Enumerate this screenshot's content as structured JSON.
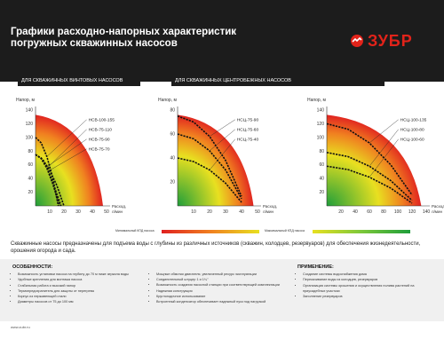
{
  "title": {
    "line1": "Графики расходно-напорных характеристик",
    "line2": "погружных скважинных насосов"
  },
  "brand": {
    "name": "ЗУБР",
    "color": "#e2231a"
  },
  "sections": {
    "screw": "ДЛЯ СКВАЖИННЫХ ВИНТОВЫХ НАСОСОВ",
    "centrifugal": "ДЛЯ СКВАЖИННЫХ ЦЕНТРОБЕЖНЫХ НАСОСОВ"
  },
  "chart_data": [
    {
      "type": "line",
      "ylabel": "Напор, м",
      "xlabel": "Расход, л/мин",
      "ylim": [
        0,
        140
      ],
      "xlim": [
        0,
        50
      ],
      "yticks": [
        "140",
        "120",
        "100",
        "80",
        "60",
        "40",
        "20"
      ],
      "xticks": [
        "10",
        "20",
        "30",
        "40",
        "50"
      ],
      "series": [
        {
          "name": "НСВ-100-155",
          "x": [
            0,
            4,
            8,
            12,
            16
          ],
          "y": [
            100,
            92,
            72,
            42,
            0
          ]
        },
        {
          "name": "НСВ-75-110",
          "x": [
            0,
            4,
            8,
            12,
            17
          ],
          "y": [
            75,
            69,
            55,
            33,
            0
          ]
        },
        {
          "name": "НСВ-75-90",
          "x": [
            0,
            4,
            8,
            12,
            18
          ],
          "y": [
            75,
            70,
            57,
            35,
            0
          ]
        },
        {
          "name": "НСВ-75-70",
          "x": [
            0,
            5,
            10,
            15,
            20
          ],
          "y": [
            75,
            68,
            52,
            30,
            0
          ]
        }
      ]
    },
    {
      "type": "line",
      "ylabel": "Напор, м",
      "xlabel": "Расход, л/мин",
      "ylim": [
        0,
        80
      ],
      "xlim": [
        0,
        50
      ],
      "yticks": [
        "80",
        "60",
        "40",
        "20"
      ],
      "xticks": [
        "10",
        "20",
        "30",
        "40",
        "50"
      ],
      "series": [
        {
          "name": "НСЦ-75-90",
          "x": [
            0,
            10,
            20,
            30,
            40
          ],
          "y": [
            75,
            70,
            58,
            38,
            8
          ]
        },
        {
          "name": "НСЦ-75-60",
          "x": [
            0,
            10,
            20,
            30,
            40
          ],
          "y": [
            60,
            56,
            46,
            30,
            6
          ]
        },
        {
          "name": "НСЦ-75-40",
          "x": [
            0,
            10,
            20,
            30,
            40
          ],
          "y": [
            40,
            37,
            30,
            19,
            3
          ]
        }
      ]
    },
    {
      "type": "line",
      "ylabel": "Напор, м",
      "xlabel": "Расход, л/мин",
      "ylim": [
        0,
        140
      ],
      "xlim": [
        0,
        140
      ],
      "yticks": [
        "140",
        "120",
        "100",
        "80",
        "60",
        "40",
        "20"
      ],
      "xticks": [
        "20",
        "40",
        "60",
        "80",
        "100",
        "120",
        "140"
      ],
      "series": [
        {
          "name": "НСЦ-100-135",
          "x": [
            0,
            30,
            60,
            90,
            120
          ],
          "y": [
            120,
            112,
            92,
            60,
            16
          ]
        },
        {
          "name": "НСЦ-100-80",
          "x": [
            0,
            30,
            60,
            90,
            120
          ],
          "y": [
            78,
            72,
            58,
            37,
            8
          ]
        },
        {
          "name": "НСЦ-100-60",
          "x": [
            0,
            30,
            60,
            90,
            120
          ],
          "y": [
            58,
            53,
            42,
            26,
            4
          ]
        }
      ]
    }
  ],
  "legend": {
    "min_label": "Минимальный КПД насоса",
    "max_label": "Максимальный КПД насоса"
  },
  "description": "Скважинные насосы предназначены для подъема воды с глубины из различных источников (скважин, колодцев, резервуаров) для обеспечения жизнедеятельности, орошения огорода и сада.",
  "features": {
    "title": "ОСОБЕННОСТИ:",
    "col1": [
      "Возможность установки насоса на глубину до 70 м ниже зеркала воды",
      "Удобные крепления для монтажа насоса",
      "Стабильная работа и высокий напор",
      "Термопредохранитель для защиты от перегрева",
      "Корпус из нержавеющей стали",
      "Диаметры насосов от 75 до 100 мм"
    ],
    "col2": [
      "Мощные обмотки двигателя, увеличенный ресурс эксплуатации",
      "Соединительный штуцер 1 и 1¼\"",
      "Возможность создания насосной станции при соответствующей комплектации",
      "Надежная конструкция",
      "Круглогодичное использование",
      "Встроенный конденсатор обеспечивает надежный пуск под нагрузкой"
    ]
  },
  "application": {
    "title": "ПРИМЕНЕНИЕ:",
    "items": [
      "Создание системы водоснабжения дома",
      "Перекачивание воды из колодцев, резервуаров",
      "Организация системы орошения и осуществления полива растений на приусадебных участках",
      "Заполнение резервуаров"
    ]
  },
  "footer": "www.zubr.ru"
}
